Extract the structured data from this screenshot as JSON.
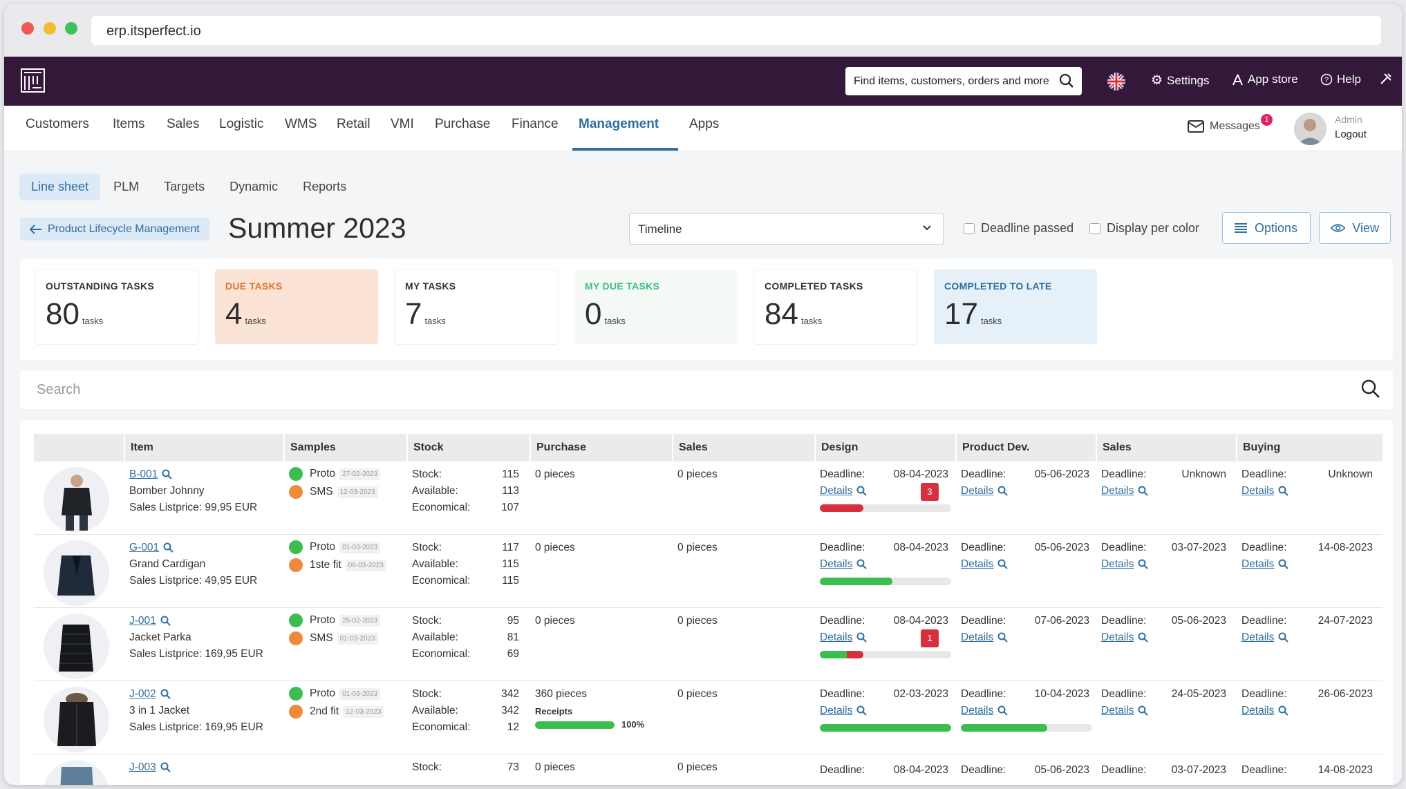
{
  "browser": {
    "url": "erp.itsperfect.io"
  },
  "topbar": {
    "search_placeholder": "Find items, customers, orders and more",
    "settings": "Settings",
    "app_store": "App store",
    "help": "Help"
  },
  "nav": {
    "items": [
      "Customers",
      "Items",
      "Sales",
      "Logistic",
      "WMS",
      "Retail",
      "VMI",
      "Purchase",
      "Finance",
      "Management",
      "Apps"
    ],
    "active": "Management",
    "messages": "Messages",
    "messages_count": "1",
    "user_role": "Admin",
    "logout": "Logout"
  },
  "subtabs": [
    "Line sheet",
    "PLM",
    "Targets",
    "Dynamic",
    "Reports"
  ],
  "header": {
    "back_label": "Product Lifecycle Management",
    "title": "Summer 2023",
    "view_select": "Timeline",
    "deadline_passed": "Deadline passed",
    "display_per_color": "Display per color",
    "options": "Options",
    "view": "View"
  },
  "kpis": [
    {
      "label": "OUTSTANDING TASKS",
      "value": "80",
      "unit": "tasks"
    },
    {
      "label": "DUE TASKS",
      "value": "4",
      "unit": "tasks"
    },
    {
      "label": "MY TASKS",
      "value": "7",
      "unit": "tasks"
    },
    {
      "label": "MY DUE TASKS",
      "value": "0",
      "unit": "tasks"
    },
    {
      "label": "COMPLETED TASKS",
      "value": "84",
      "unit": "tasks"
    },
    {
      "label": "COMPLETED TO LATE",
      "value": "17",
      "unit": "tasks"
    }
  ],
  "search": {
    "placeholder": "Search"
  },
  "colors": {
    "accent": "#2e6f9e",
    "brand": "#33183a",
    "green": "#3cbd4f",
    "orange": "#ef8a3c",
    "red": "#d62f3e"
  },
  "table": {
    "headers": [
      "Item",
      "Samples",
      "Stock",
      "Purchase",
      "Sales",
      "Design",
      "Product Dev.",
      "Sales",
      "Buying"
    ],
    "labels": {
      "stock": "Stock:",
      "available": "Available:",
      "economical": "Economical:",
      "deadline": "Deadline:",
      "details": "Details"
    },
    "rows": [
      {
        "code": "B-001",
        "name": "Bomber Johnny",
        "price": "Sales Listprice: 99,95 EUR",
        "samples": [
          {
            "name": "Proto",
            "date": "27-02-2023",
            "color": "green"
          },
          {
            "name": "SMS",
            "date": "12-03-2023",
            "color": "orange"
          }
        ],
        "stock": "115",
        "available": "113",
        "economical": "107",
        "purchase": "0 pieces",
        "sales": "0 pieces",
        "design": {
          "deadline": "08-04-2023",
          "badge": "3",
          "progress": 0.33,
          "bar_color": "red"
        },
        "product_dev": {
          "deadline": "05-06-2023"
        },
        "sales_task": {
          "deadline": "Unknown"
        },
        "buying": {
          "deadline": "Unknown"
        }
      },
      {
        "code": "G-001",
        "name": "Grand Cardigan",
        "price": "Sales Listprice: 49,95 EUR",
        "samples": [
          {
            "name": "Proto",
            "date": "01-03-2023",
            "color": "green"
          },
          {
            "name": "1ste fit",
            "date": "06-03-2023",
            "color": "orange"
          }
        ],
        "stock": "117",
        "available": "115",
        "economical": "115",
        "purchase": "0 pieces",
        "sales": "0 pieces",
        "design": {
          "deadline": "08-04-2023",
          "badge": "",
          "progress": 0.55,
          "bar_color": "green"
        },
        "product_dev": {
          "deadline": "05-06-2023"
        },
        "sales_task": {
          "deadline": "03-07-2023"
        },
        "buying": {
          "deadline": "14-08-2023"
        }
      },
      {
        "code": "J-001",
        "name": "Jacket Parka",
        "price": "Sales Listprice: 169,95 EUR",
        "samples": [
          {
            "name": "Proto",
            "date": "25-02-2023",
            "color": "green"
          },
          {
            "name": "SMS",
            "date": "01-03-2023",
            "color": "orange"
          }
        ],
        "stock": "95",
        "available": "81",
        "economical": "69",
        "purchase": "0 pieces",
        "sales": "0 pieces",
        "design": {
          "deadline": "08-04-2023",
          "badge": "1",
          "progress": 0.33,
          "bar_color": "mixed"
        },
        "product_dev": {
          "deadline": "07-06-2023"
        },
        "sales_task": {
          "deadline": "05-06-2023"
        },
        "buying": {
          "deadline": "24-07-2023"
        }
      },
      {
        "code": "J-002",
        "name": "3 in 1 Jacket",
        "price": "Sales Listprice: 169,95 EUR",
        "samples": [
          {
            "name": "Proto",
            "date": "01-03-2023",
            "color": "green"
          },
          {
            "name": "2nd fit",
            "date": "12-03-2023",
            "color": "orange"
          }
        ],
        "stock": "342",
        "available": "342",
        "economical": "12",
        "purchase": "360 pieces",
        "purchase_receipts": "Receipts",
        "purchase_progress": "100%",
        "sales": "0 pieces",
        "design": {
          "deadline": "02-03-2023",
          "badge": "",
          "progress": 1.0,
          "bar_color": "green"
        },
        "product_dev": {
          "deadline": "10-04-2023",
          "progress": 0.66
        },
        "sales_task": {
          "deadline": "24-05-2023"
        },
        "buying": {
          "deadline": "26-06-2023"
        }
      },
      {
        "code": "J-003",
        "stock": "73",
        "purchase": "0 pieces",
        "sales": "0 pieces",
        "design": {
          "deadline": "08-04-2023"
        },
        "product_dev": {
          "deadline": "05-06-2023"
        },
        "sales_task": {
          "deadline": "03-07-2023"
        },
        "buying": {
          "deadline": "14-08-2023"
        }
      }
    ]
  }
}
